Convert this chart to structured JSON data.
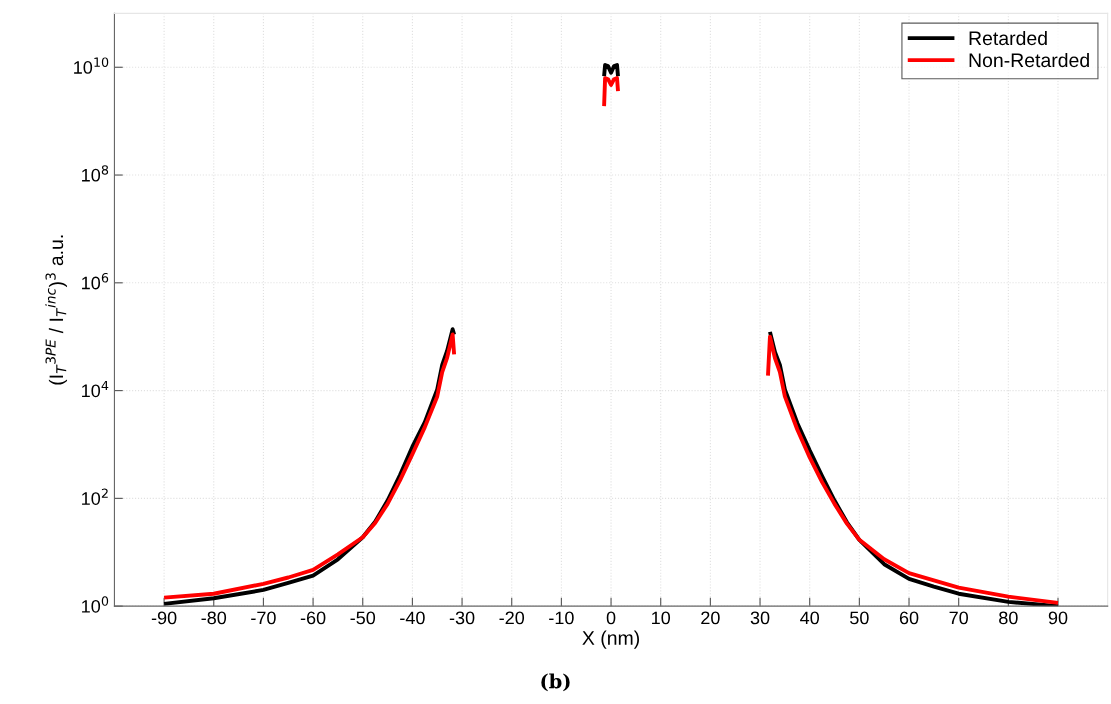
{
  "chart_data": {
    "type": "line",
    "xlabel": "X (nm)",
    "ylabel": "(I$_{T}$$^{3PE}$ / I$_{T}$$^{inc}$)$^{3}$ a.u.",
    "annotations": [
      "(b)"
    ],
    "log": "y",
    "grid": true,
    "legend": "top right",
    "line_style": "solid",
    "marker": "none",
    "xlim": [
      -100,
      100
    ],
    "xticks": [
      -90,
      -80,
      -70,
      -60,
      -50,
      -40,
      -30,
      -20,
      -10,
      0,
      10,
      20,
      30,
      40,
      50,
      60,
      70,
      80,
      90
    ],
    "ylim": [
      1,
      100000000000.0
    ],
    "yticks": [
      {
        "value": 1,
        "label": "10$^{0}$"
      },
      {
        "value": 100,
        "label": "10$^{2}$"
      },
      {
        "value": 10000,
        "label": "10$^{4}$"
      },
      {
        "value": 1000000,
        "label": "10$^{6}$"
      },
      {
        "value": 100000000,
        "label": "10$^{8}$"
      },
      {
        "value": 10000000000,
        "label": "10$^{10}$"
      }
    ],
    "series": [
      {
        "name": "Retarded",
        "color": "#000000",
        "x": [
          -90,
          -80,
          -70,
          -65,
          -60,
          -55,
          -50,
          -47.5,
          -45,
          -42.5,
          -40,
          -37.5,
          -35,
          -34,
          -33,
          -31.9,
          -31.6
        ],
        "values": [
          1.1,
          1.4,
          2.0,
          2.7,
          3.7,
          7.4,
          19,
          37,
          91,
          270,
          910,
          2600,
          10500,
          30000,
          55000,
          138000,
          110000
        ]
      },
      {
        "color": "#000000",
        "x": [
          -1.4,
          -1.2,
          -0.6,
          0,
          0.6,
          1.2,
          1.4
        ],
        "values": [
          6800000000.0,
          11000000000.0,
          10500000000.0,
          7900000000.0,
          10500000000.0,
          11000000000.0,
          6800000000.0
        ]
      },
      {
        "color": "#000000",
        "x": [
          32,
          33,
          34,
          35,
          37.5,
          40,
          42.5,
          45,
          47.5,
          50,
          55,
          60,
          65,
          70,
          80,
          90
        ],
        "values": [
          123000,
          52000,
          30000,
          10500,
          2500,
          780,
          260,
          91,
          36,
          17,
          6.0,
          3.2,
          2.3,
          1.7,
          1.2,
          1.0
        ]
      },
      {
        "name": "Non-Retarded",
        "color": "#ff0000",
        "x": [
          -90,
          -80,
          -70,
          -65,
          -60,
          -55,
          -50,
          -47.5,
          -45,
          -42.5,
          -40,
          -37.5,
          -35,
          -34,
          -33,
          -31.9,
          -31.6
        ],
        "values": [
          1.44,
          1.7,
          2.6,
          3.4,
          4.7,
          9.1,
          19,
          35,
          79,
          215,
          660,
          2100,
          7800,
          22000,
          41000,
          110000,
          47000
        ]
      },
      {
        "color": "#ff0000",
        "x": [
          -1.4,
          -1.2,
          -0.6,
          0,
          0.6,
          1.2,
          1.4
        ],
        "values": [
          1900000000.0,
          6300000000.0,
          6000000000.0,
          4700000000.0,
          6000000000.0,
          6300000000.0,
          3600000000.0
        ]
      },
      {
        "color": "#ff0000",
        "x": [
          31.6,
          32,
          33,
          34,
          35,
          37.5,
          40,
          42.5,
          45,
          47.5,
          50,
          55,
          60,
          65,
          70,
          80,
          90
        ],
        "values": [
          19000,
          100000,
          40000,
          22000,
          7800,
          1900,
          575,
          200,
          79,
          34,
          17,
          7.4,
          4.1,
          3.0,
          2.2,
          1.5,
          1.15
        ]
      }
    ]
  }
}
